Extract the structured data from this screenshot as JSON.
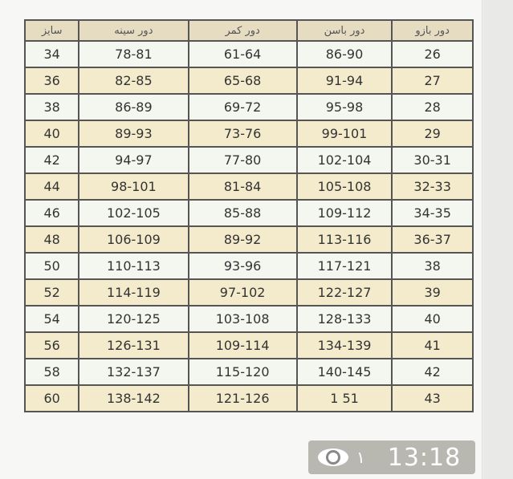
{
  "headers": [
    "سایز",
    "دور سینه",
    "دور کمر",
    "دور باسن",
    "دور بازو"
  ],
  "rows": [
    [
      "34",
      "78-81",
      "61-64",
      "86-90",
      "26"
    ],
    [
      "36",
      "82-85",
      "65-68",
      "91-94",
      "27"
    ],
    [
      "38",
      "86-89",
      "69-72",
      "95-98",
      "28"
    ],
    [
      "40",
      "89-93",
      "73-76",
      "99-101",
      "29"
    ],
    [
      "42",
      "94-97",
      "77-80",
      "102-104",
      "30-31"
    ],
    [
      "44",
      "98-101",
      "81-84",
      "105-108",
      "32-33"
    ],
    [
      "46",
      "102-105",
      "85-88",
      "109-112",
      "34-35"
    ],
    [
      "48",
      "106-109",
      "89-92",
      "113-116",
      "36-37"
    ],
    [
      "50",
      "110-113",
      "93-96",
      "117-121",
      "38"
    ],
    [
      "52",
      "114-119",
      "97-102",
      "122-127",
      "39"
    ],
    [
      "54",
      "120-125",
      "103-108",
      "128-133",
      "40"
    ],
    [
      "56",
      "126-131",
      "109-114",
      "134-139",
      "41"
    ],
    [
      "58",
      "132-137",
      "115-120",
      "140-145",
      "42"
    ],
    [
      "60",
      "138-142",
      "121-126",
      "1  51",
      "43"
    ]
  ],
  "overlay": {
    "icon": "eye-icon",
    "count": "١",
    "time": "13:18"
  }
}
